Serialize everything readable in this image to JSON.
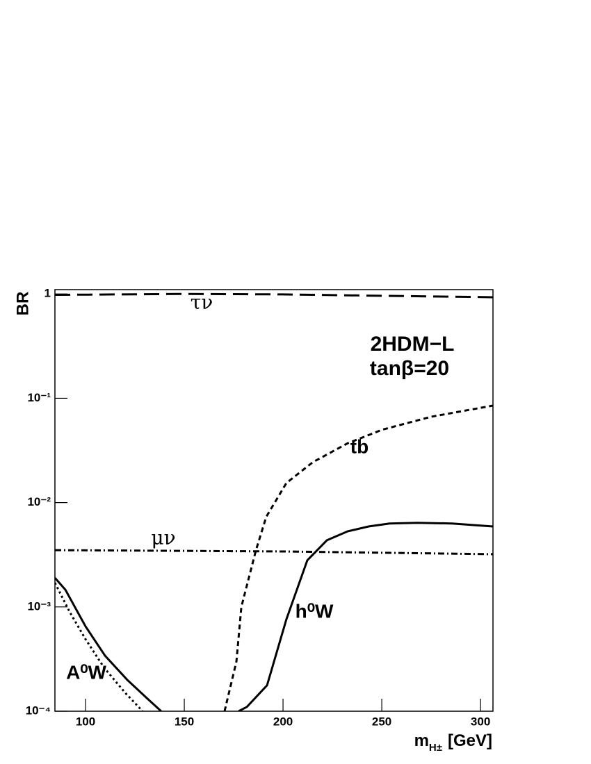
{
  "chart_data": {
    "type": "line",
    "log_y": true,
    "y_label": "BR",
    "x_label": {
      "main": "m",
      "sub": "H±",
      "unit": "[GeV]"
    },
    "xlim": [
      84.5,
      306.3
    ],
    "ylim": [
      0.0001,
      1.1
    ],
    "xticks": [
      100,
      150,
      200,
      250,
      300
    ],
    "yticks": [
      {
        "value": 0.0001,
        "label": "10⁻⁴"
      },
      {
        "value": 0.001,
        "label": "10⁻³"
      },
      {
        "value": 0.01,
        "label": "10⁻²"
      },
      {
        "value": 0.1,
        "label": "10⁻¹"
      },
      1
    ],
    "annotations": [
      "2HDM−L",
      "tanβ=20"
    ],
    "color": "#000000",
    "series": [
      {
        "name": "τν",
        "style": "long-dash",
        "x": [
          84.5,
          150,
          200,
          250,
          306.3
        ],
        "values": [
          0.98,
          1.0,
          0.99,
          0.96,
          0.93
        ]
      },
      {
        "name": "μν",
        "style": "dash-dot",
        "x": [
          84.5,
          200,
          306.3
        ],
        "values": [
          0.0035,
          0.0034,
          0.0032
        ]
      },
      {
        "name": "tb",
        "style": "short-dash",
        "x": [
          170.4,
          176.4,
          178.9,
          186.3,
          191.5,
          201.7,
          215.1,
          232.7,
          250.3,
          275,
          306.3
        ],
        "values": [
          0.0001,
          0.0003,
          0.001,
          0.0035,
          0.0073,
          0.0154,
          0.0244,
          0.037,
          0.05,
          0.0665,
          0.085
        ]
      },
      {
        "name": "h⁰W",
        "style": "solid",
        "x": [
          177.5,
          181.7,
          191.9,
          201.7,
          212.3,
          222.2,
          232.7,
          243.3,
          253.9,
          268,
          285.6,
          306.3
        ],
        "values": [
          0.0001,
          0.00011,
          0.000177,
          0.00076,
          0.0028,
          0.00435,
          0.0053,
          0.0059,
          0.0063,
          0.0064,
          0.0063,
          0.0059
        ]
      },
      {
        "name": "A⁰W",
        "style": "solid",
        "x": [
          84.5,
          89.8,
          100,
          109.9,
          121.1,
          131.7,
          138.3
        ],
        "values": [
          0.0019,
          0.00146,
          0.00065,
          0.00034,
          0.0002,
          0.00013,
          0.0001
        ]
      },
      {
        "style": "dotted",
        "x": [
          84.5,
          91.9,
          100,
          109.5,
          120.1,
          128.9
        ],
        "values": [
          0.0017,
          0.0009,
          0.00049,
          0.00026,
          0.00015,
          0.0001
        ]
      }
    ]
  }
}
